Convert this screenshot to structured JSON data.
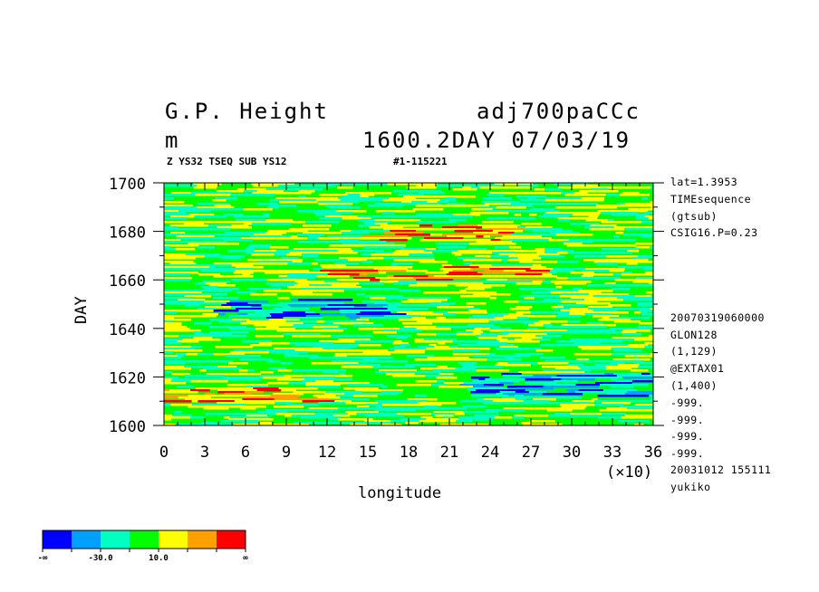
{
  "header": {
    "title_left_1": "G.P. Height",
    "title_right_1": "adj700paCCc",
    "title_left_2": "m",
    "title_right_2": "1600.2DAY 07/03/19",
    "sub_left": "Z YS32 TSEQ SUB YS12",
    "sub_right": "#1-115221"
  },
  "side_info": [
    "lat=1.3953",
    "TIMEsequence",
    "(gtsub)",
    "CSIG16.P=0.23",
    "20070319060000",
    "GLON128",
    "(1,129)",
    "@EXTAX01",
    "(1,400)",
    "-999.",
    "-999.",
    "-999.",
    "-999.",
    "20031012 155111",
    "yukiko"
  ],
  "colorbar": {
    "colors": [
      "#0000ff",
      "#00a0ff",
      "#00ffc0",
      "#00ff00",
      "#ffff00",
      "#ffa000",
      "#ff0000"
    ],
    "labels": [
      "-∞",
      "-30.0",
      "10.0",
      "∞"
    ]
  },
  "chart_data": {
    "type": "heatmap",
    "title": "G.P. Height",
    "xlabel": "longitude",
    "ylabel": "DAY",
    "x_multiplier_label": "(×10)",
    "xlim": [
      0,
      36
    ],
    "ylim": [
      1600,
      1700
    ],
    "xticks": [
      0,
      3,
      6,
      9,
      12,
      15,
      18,
      21,
      24,
      27,
      30,
      33,
      36
    ],
    "yticks": [
      1600,
      1620,
      1640,
      1660,
      1680,
      1700
    ],
    "units": "m",
    "color_levels": [
      -50,
      -30,
      -10,
      10,
      30,
      50
    ],
    "background_level_color": "#00ff00",
    "features": [
      {
        "desc": "yellow band",
        "x": [
          16,
          26
        ],
        "y": [
          1676,
          1683
        ],
        "color": "#ffff00"
      },
      {
        "desc": "yellow band",
        "x": [
          12,
          28
        ],
        "y": [
          1660,
          1666
        ],
        "color": "#ffff00"
      },
      {
        "desc": "yellow band",
        "x": [
          0,
          12
        ],
        "y": [
          1610,
          1616
        ],
        "color": "#ffff00"
      },
      {
        "desc": "cyan band",
        "x": [
          4,
          18
        ],
        "y": [
          1644,
          1652
        ],
        "color": "#00ffc0"
      },
      {
        "desc": "cyan band",
        "x": [
          22,
          36
        ],
        "y": [
          1612,
          1622
        ],
        "color": "#00ffc0"
      }
    ]
  }
}
